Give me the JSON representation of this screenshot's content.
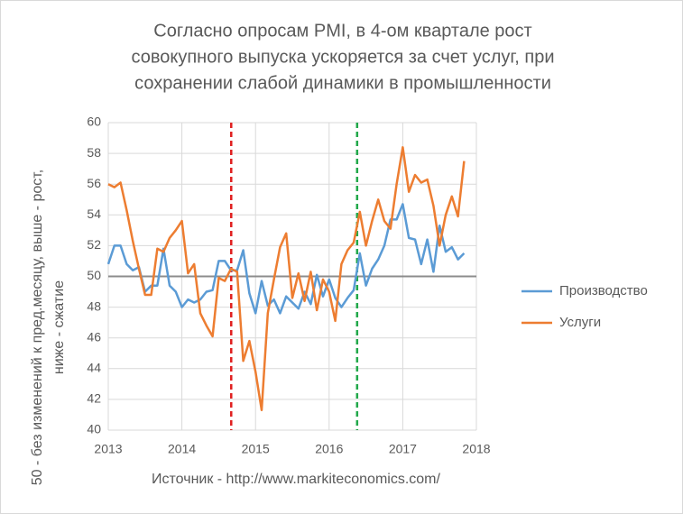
{
  "chart_data": {
    "type": "line",
    "title": [
      "Согласно опросам PMI, в 4-ом квартале рост",
      "совокупного выпуска ускоряется за счет услуг, при",
      "сохранении слабой динамики в промышленности"
    ],
    "y_label": [
      "50 - без изменений к пред.месяцу, выше - рост,",
      "ниже - сжатие"
    ],
    "source": "Источник - http://www.markiteconomics.com/",
    "x": [
      2013,
      2013.083,
      2013.167,
      2013.25,
      2013.333,
      2013.417,
      2013.5,
      2013.583,
      2013.667,
      2013.75,
      2013.833,
      2013.917,
      2014,
      2014.083,
      2014.167,
      2014.25,
      2014.333,
      2014.417,
      2014.5,
      2014.583,
      2014.667,
      2014.75,
      2014.833,
      2014.917,
      2015,
      2015.083,
      2015.167,
      2015.25,
      2015.333,
      2015.417,
      2015.5,
      2015.583,
      2015.667,
      2015.75,
      2015.833,
      2015.917,
      2016,
      2016.083,
      2016.167,
      2016.25,
      2016.333,
      2016.417,
      2016.5,
      2016.583,
      2016.667,
      2016.75,
      2016.833,
      2016.917,
      2017,
      2017.083,
      2017.167,
      2017.25,
      2017.333,
      2017.417,
      2017.5,
      2017.583,
      2017.667,
      2017.75,
      2017.833
    ],
    "series": [
      {
        "name": "Производство",
        "color": "#5b9bd5",
        "values": [
          50.8,
          52.0,
          52.0,
          50.8,
          50.4,
          50.6,
          49.0,
          49.4,
          49.4,
          51.8,
          49.4,
          49.0,
          48.0,
          48.5,
          48.3,
          48.5,
          49.0,
          49.1,
          51.0,
          51.0,
          50.4,
          50.4,
          51.7,
          48.9,
          47.6,
          49.7,
          48.1,
          48.5,
          47.6,
          48.7,
          48.3,
          47.9,
          49.0,
          48.2,
          50.1,
          48.7,
          49.8,
          48.6,
          48.0,
          48.6,
          49.1,
          51.5,
          49.4,
          50.5,
          51.1,
          52.0,
          53.7,
          53.7,
          54.7,
          52.5,
          52.4,
          50.8,
          52.4,
          50.3,
          53.3,
          51.6,
          51.9,
          51.1,
          51.5
        ]
      },
      {
        "name": "Услуги",
        "color": "#ed7d31",
        "values": [
          56.0,
          55.8,
          56.1,
          54.3,
          52.3,
          50.5,
          48.8,
          48.8,
          51.8,
          51.6,
          52.5,
          53.0,
          53.6,
          50.2,
          50.8,
          47.6,
          46.8,
          46.1,
          49.9,
          49.7,
          50.5,
          50.3,
          44.5,
          45.8,
          43.8,
          41.3,
          47.6,
          49.8,
          51.9,
          52.8,
          48.6,
          50.2,
          48.4,
          50.3,
          47.8,
          49.8,
          49.0,
          47.1,
          50.8,
          51.7,
          52.2,
          54.2,
          52.0,
          53.6,
          55.0,
          53.6,
          53.1,
          56.0,
          58.4,
          55.5,
          56.6,
          56.1,
          56.3,
          54.6,
          52.0,
          54.0,
          55.2,
          53.9,
          57.5
        ]
      }
    ],
    "xlim": [
      2013,
      2018
    ],
    "xticks": [
      2013,
      2014,
      2015,
      2016,
      2017,
      2018
    ],
    "ylim": [
      40,
      60
    ],
    "yticks": [
      40,
      42,
      44,
      46,
      48,
      50,
      52,
      54,
      56,
      58,
      60
    ],
    "grid": true,
    "reference_line": 50,
    "vlines": [
      {
        "x": 2014.67,
        "color": "#e02020"
      },
      {
        "x": 2016.38,
        "color": "#21a84a"
      }
    ],
    "legend": "right"
  }
}
